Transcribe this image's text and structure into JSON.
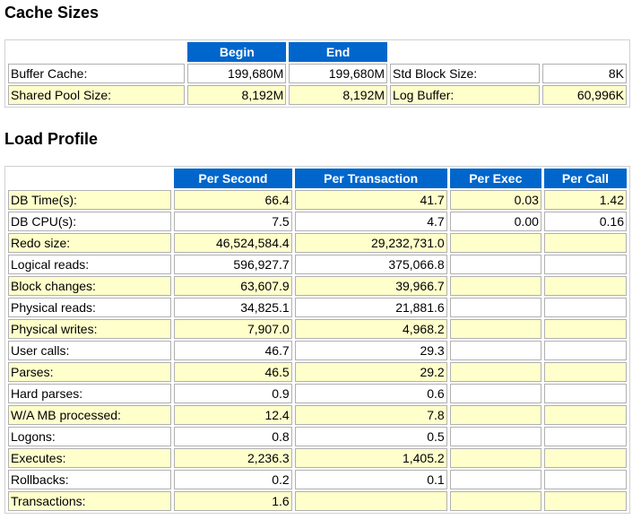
{
  "cache_sizes": {
    "title": "Cache Sizes",
    "headers": [
      "Begin",
      "End"
    ],
    "rows": [
      {
        "label": "Buffer Cache:",
        "begin": "199,680M",
        "end": "199,680M",
        "label2": "Std Block Size:",
        "value2": "8K"
      },
      {
        "label": "Shared Pool Size:",
        "begin": "8,192M",
        "end": "8,192M",
        "label2": "Log Buffer:",
        "value2": "60,996K"
      }
    ]
  },
  "load_profile": {
    "title": "Load Profile",
    "headers": [
      "Per Second",
      "Per Transaction",
      "Per Exec",
      "Per Call"
    ],
    "rows": [
      {
        "label": "DB Time(s):",
        "per_second": "66.4",
        "per_transaction": "41.7",
        "per_exec": "0.03",
        "per_call": "1.42"
      },
      {
        "label": "DB CPU(s):",
        "per_second": "7.5",
        "per_transaction": "4.7",
        "per_exec": "0.00",
        "per_call": "0.16"
      },
      {
        "label": "Redo size:",
        "per_second": "46,524,584.4",
        "per_transaction": "29,232,731.0",
        "per_exec": "",
        "per_call": ""
      },
      {
        "label": "Logical reads:",
        "per_second": "596,927.7",
        "per_transaction": "375,066.8",
        "per_exec": "",
        "per_call": ""
      },
      {
        "label": "Block changes:",
        "per_second": "63,607.9",
        "per_transaction": "39,966.7",
        "per_exec": "",
        "per_call": ""
      },
      {
        "label": "Physical reads:",
        "per_second": "34,825.1",
        "per_transaction": "21,881.6",
        "per_exec": "",
        "per_call": ""
      },
      {
        "label": "Physical writes:",
        "per_second": "7,907.0",
        "per_transaction": "4,968.2",
        "per_exec": "",
        "per_call": ""
      },
      {
        "label": "User calls:",
        "per_second": "46.7",
        "per_transaction": "29.3",
        "per_exec": "",
        "per_call": ""
      },
      {
        "label": "Parses:",
        "per_second": "46.5",
        "per_transaction": "29.2",
        "per_exec": "",
        "per_call": ""
      },
      {
        "label": "Hard parses:",
        "per_second": "0.9",
        "per_transaction": "0.6",
        "per_exec": "",
        "per_call": ""
      },
      {
        "label": "W/A MB processed:",
        "per_second": "12.4",
        "per_transaction": "7.8",
        "per_exec": "",
        "per_call": ""
      },
      {
        "label": "Logons:",
        "per_second": "0.8",
        "per_transaction": "0.5",
        "per_exec": "",
        "per_call": ""
      },
      {
        "label": "Executes:",
        "per_second": "2,236.3",
        "per_transaction": "1,405.2",
        "per_exec": "",
        "per_call": ""
      },
      {
        "label": "Rollbacks:",
        "per_second": "0.2",
        "per_transaction": "0.1",
        "per_exec": "",
        "per_call": ""
      },
      {
        "label": "Transactions:",
        "per_second": "1.6",
        "per_transaction": "",
        "per_exec": "",
        "per_call": ""
      }
    ]
  },
  "colors": {
    "header_bg": "#0066cc",
    "header_text": "#ffffff",
    "row_highlight": "#ffffcc",
    "row_plain": "#ffffff"
  }
}
